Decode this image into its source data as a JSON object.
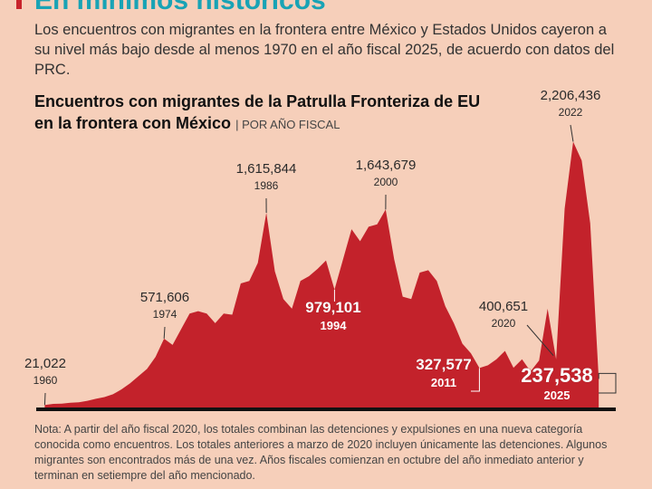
{
  "header": {
    "title": "En mínimos históricos",
    "intro": "Los encuentros con migrantes en la frontera entre México y Estados Unidos cayeron a su nivel más bajo desde al menos 1970 en el año fiscal 2025, de acuerdo con datos del PRC."
  },
  "chart_data": {
    "type": "area",
    "title": "Encuentros con migrantes de la Patrulla Fronteriza de EU en la frontera con México",
    "subtitle": "POR AÑO FISCAL",
    "color": "#c3222b",
    "x": [
      1960,
      1961,
      1962,
      1963,
      1964,
      1965,
      1966,
      1967,
      1968,
      1969,
      1970,
      1971,
      1972,
      1973,
      1974,
      1975,
      1976,
      1977,
      1978,
      1979,
      1980,
      1981,
      1982,
      1983,
      1984,
      1985,
      1986,
      1987,
      1988,
      1989,
      1990,
      1991,
      1992,
      1993,
      1994,
      1995,
      1996,
      1997,
      1998,
      1999,
      2000,
      2001,
      2002,
      2003,
      2004,
      2005,
      2006,
      2007,
      2008,
      2009,
      2010,
      2011,
      2012,
      2013,
      2014,
      2015,
      2016,
      2017,
      2018,
      2019,
      2020,
      2021,
      2022,
      2023,
      2024,
      2025
    ],
    "values": [
      21022,
      30000,
      32000,
      39000,
      43000,
      55000,
      72000,
      86000,
      110000,
      150000,
      200000,
      260000,
      320000,
      420000,
      571606,
      520000,
      650000,
      780000,
      800000,
      780000,
      700000,
      780000,
      770000,
      1030000,
      1050000,
      1200000,
      1615844,
      1130000,
      900000,
      820000,
      1050000,
      1090000,
      1150000,
      1220000,
      979101,
      1230000,
      1480000,
      1380000,
      1500000,
      1520000,
      1643679,
      1230000,
      920000,
      900000,
      1120000,
      1140000,
      1050000,
      840000,
      700000,
      530000,
      450000,
      327577,
      350000,
      400000,
      470000,
      330000,
      400000,
      300000,
      390000,
      820000,
      400651,
      1650000,
      2206436,
      2050000,
      1530000,
      237538
    ],
    "value_labels": [
      "21,022",
      null,
      null,
      null,
      null,
      null,
      null,
      null,
      null,
      null,
      null,
      null,
      null,
      null,
      "571,606",
      null,
      null,
      null,
      null,
      null,
      null,
      null,
      null,
      null,
      null,
      null,
      "1,615,844",
      null,
      null,
      null,
      null,
      null,
      null,
      null,
      "979,101",
      null,
      null,
      null,
      null,
      null,
      "1,643,679",
      null,
      null,
      null,
      null,
      null,
      null,
      null,
      null,
      null,
      null,
      "327,577",
      null,
      null,
      null,
      null,
      null,
      null,
      null,
      null,
      "400,651",
      null,
      "2,206,436",
      null,
      null,
      "237,538"
    ],
    "xlim": [
      1959,
      2027
    ],
    "ylim": [
      0,
      2300000
    ],
    "note": "Nota: A partir del año fiscal 2020, los totales combinan las detenciones y expulsiones en una nueva categoría conocida como encuentros. Los totales anteriores a marzo de 2020 incluyen únicamente las detenciones. Algunos migrantes son encontrados más de una vez. Años fiscales comienzan en octubre del año inmediato anterior y terminan en setiempre del año mencionado."
  }
}
